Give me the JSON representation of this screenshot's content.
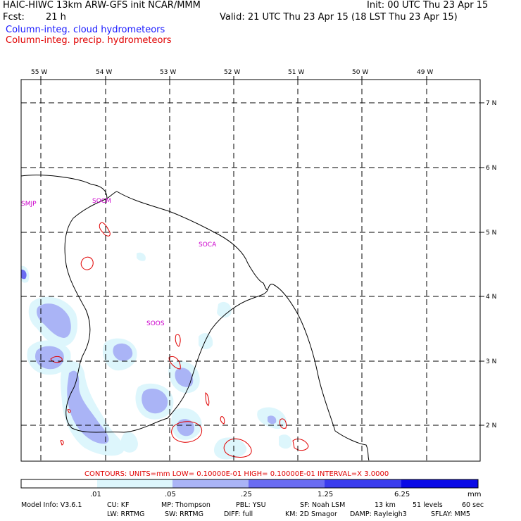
{
  "header": {
    "line1_left": "HAIC-HIWC 13km ARW-GFS init   NCAR/MMM",
    "line1_right": "Init: 00 UTC Thu 23 Apr 15",
    "line2_fcst_label": "Fcst:",
    "line2_fcst_value": "21 h",
    "line2_right": "Valid: 21 UTC Thu 23 Apr 15 (18 LST Thu 23 Apr 15)",
    "field1": "Column-integ. cloud hydrometeors",
    "field2": "Column-integ. precip. hydrometeors"
  },
  "map": {
    "lon_labels": [
      "55 W",
      "54 W",
      "53 W",
      "52 W",
      "51 W",
      "50 W",
      "49 W"
    ],
    "lat_labels": [
      "7 N",
      "6 N",
      "5 N",
      "4 N",
      "3 N",
      "2 N"
    ],
    "stations": [
      "SMJP",
      "SOCM",
      "SOCA",
      "SOOS"
    ]
  },
  "contours_line": "CONTOURS:  UNITS=mm  LOW= 0.10000E-01  HIGH= 0.10000E-01  INTERVAL=X  3.0000",
  "colorbar": {
    "colors": [
      "#ffffff",
      "#ddf6fc",
      "#aab4f6",
      "#6a6cf2",
      "#3a3cee",
      "#0a0ae6"
    ],
    "labels": [
      ".01",
      ".05",
      ".25",
      "1.25",
      "6.25"
    ],
    "unit": "mm"
  },
  "footer": {
    "line1": [
      "Model Info: V3.6.1",
      "CU: KF",
      "MP: Thompson",
      "PBL: YSU",
      "SF: Noah LSM",
      "13 km",
      "51 levels",
      "60 sec"
    ],
    "line2": [
      "LW: RRTMG",
      "SW: RRTMG",
      "DIFF: full",
      "KM: 2D Smagor",
      "DAMP: Rayleigh3",
      "SFLAY: MM5"
    ]
  }
}
